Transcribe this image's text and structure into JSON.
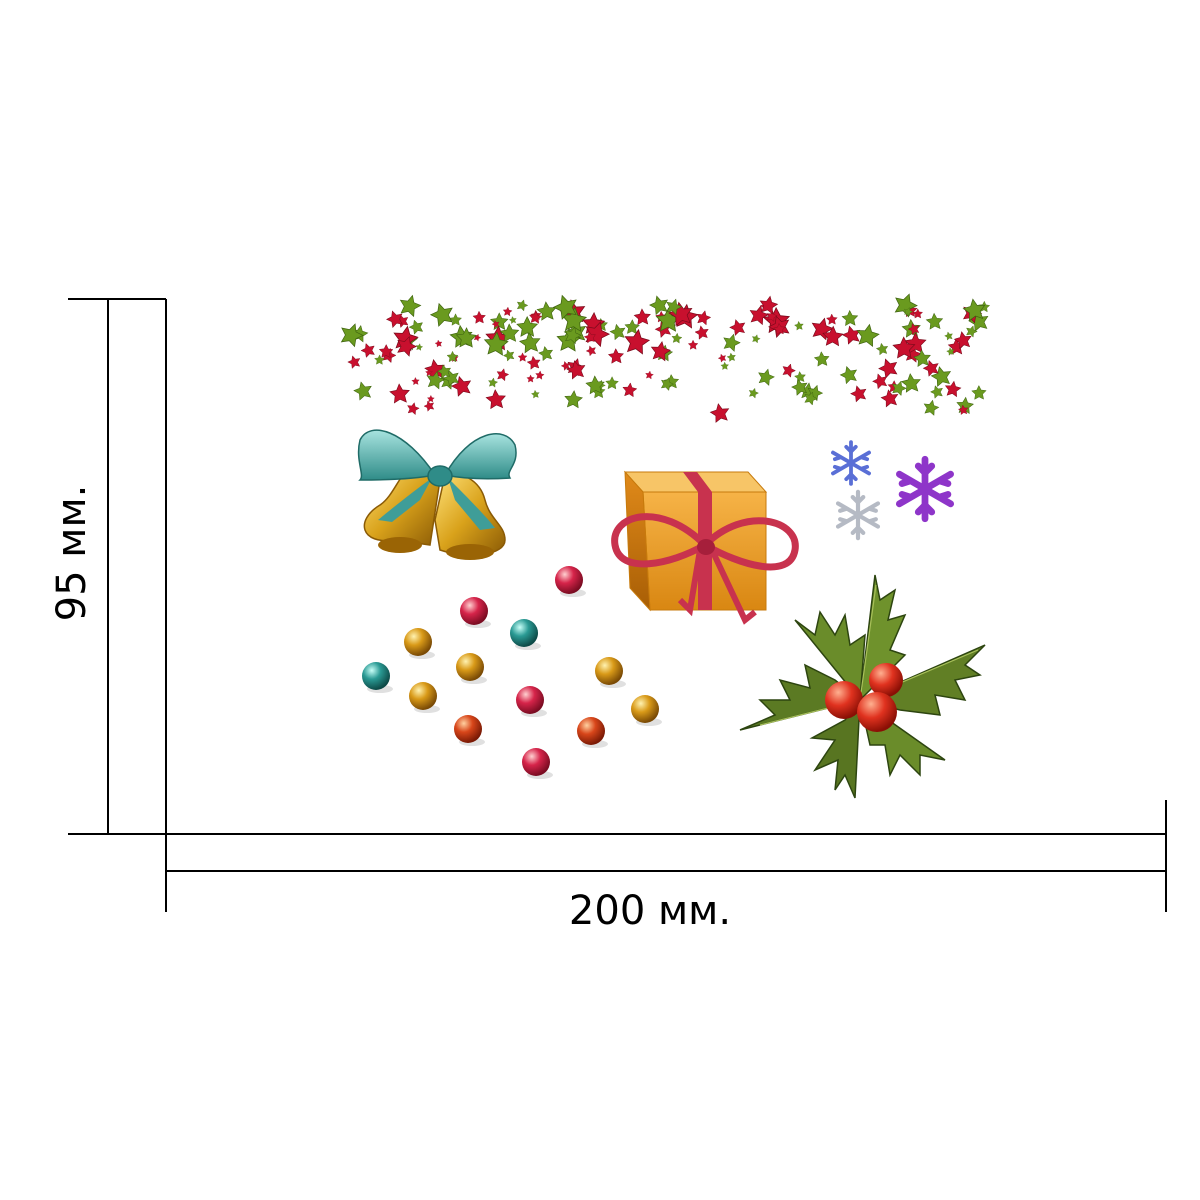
{
  "dimensions": {
    "width_label": "200 мм.",
    "height_label": "95 мм."
  },
  "colors": {
    "line": "#000000",
    "star_red": "#c8102e",
    "star_green": "#6a9a1f",
    "bow": "#5fb3b0",
    "bell": "#d9a21b",
    "box": "#f2a432",
    "ribbon": "#c8324e",
    "holly_leaf": "#5b7a23",
    "berry": "#d7301f"
  },
  "icons": [
    "stars-garland",
    "bells-with-bow-icon",
    "gift-box-icon",
    "snowflake-icon",
    "holly-icon",
    "bead-icon"
  ]
}
